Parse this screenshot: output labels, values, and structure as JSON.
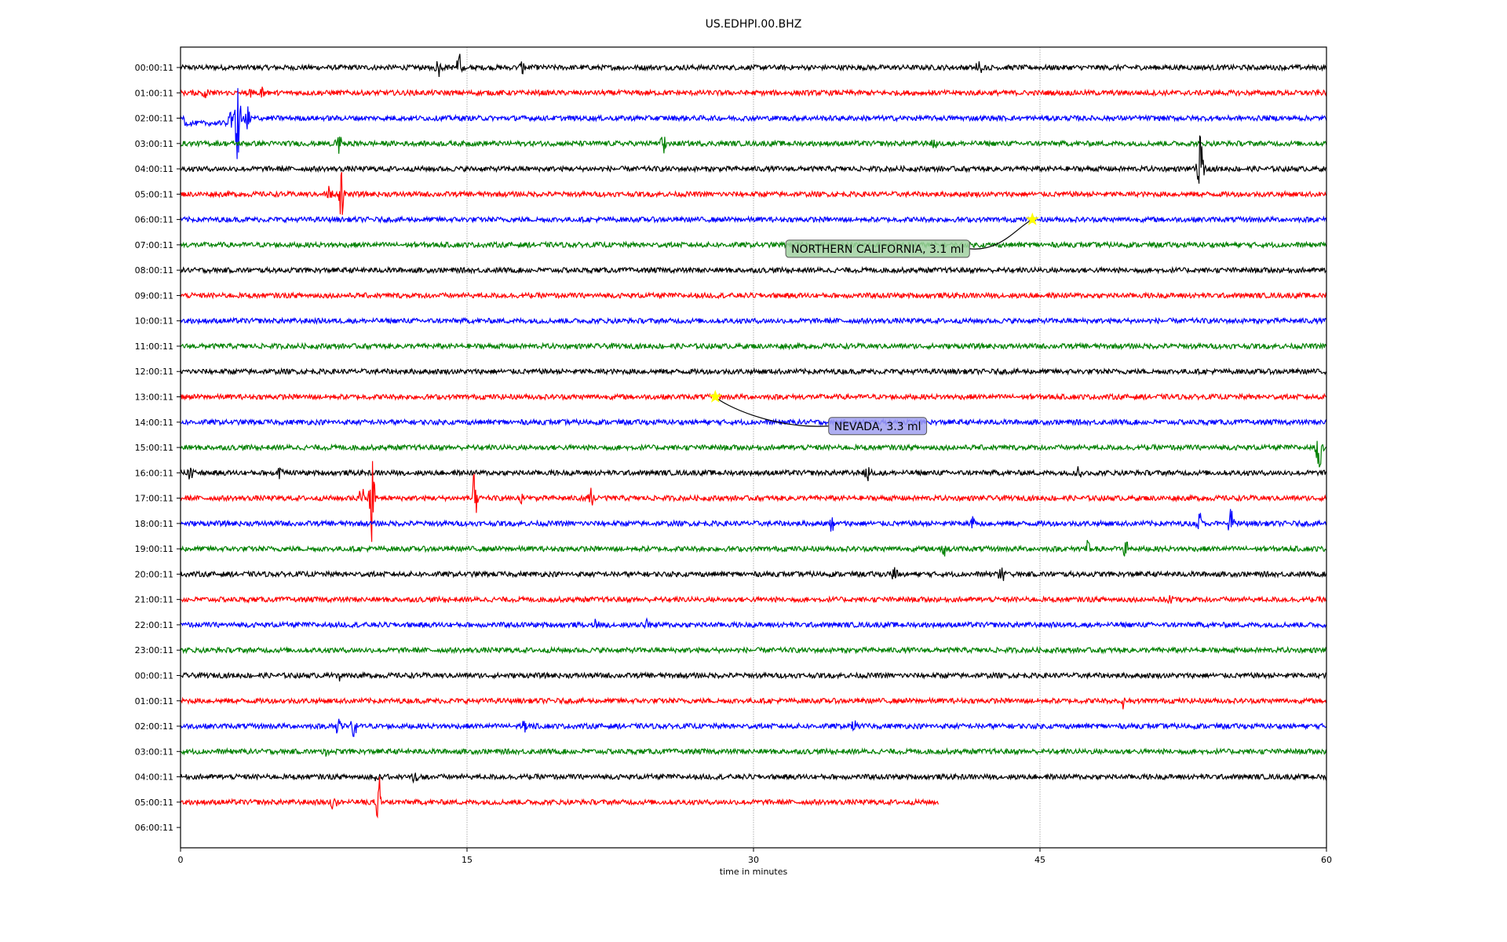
{
  "chart_data": {
    "type": "line",
    "title": "US.EDHPI.00.BHZ",
    "xlabel": "time in minutes",
    "ylabel": "",
    "xlim": [
      0,
      60
    ],
    "xticks": [
      "0",
      "15",
      "30",
      "45",
      "60"
    ],
    "xtick_values": [
      0,
      15,
      30,
      45,
      60
    ],
    "grid": "vertical dotted at 15-minute ticks",
    "colors": [
      "#000000",
      "#ff0000",
      "#0000ff",
      "#008000"
    ],
    "rows": [
      "00:00:11",
      "01:00:11",
      "02:00:11",
      "03:00:11",
      "04:00:11",
      "05:00:11",
      "06:00:11",
      "07:00:11",
      "08:00:11",
      "09:00:11",
      "10:00:11",
      "11:00:11",
      "12:00:11",
      "13:00:11",
      "14:00:11",
      "15:00:11",
      "16:00:11",
      "17:00:11",
      "18:00:11",
      "19:00:11",
      "20:00:11",
      "21:00:11",
      "22:00:11",
      "23:00:11",
      "00:00:11",
      "01:00:11",
      "02:00:11",
      "03:00:11",
      "04:00:11",
      "05:00:11",
      "06:00:11"
    ],
    "last_trace_end_minute": 39.7,
    "events_in_trace": [
      [
        0,
        13.5,
        0.4
      ],
      [
        0,
        14.6,
        0.5
      ],
      [
        0,
        17.9,
        0.3
      ],
      [
        0,
        41.8,
        0.3
      ],
      [
        1,
        3.8,
        0.45
      ],
      [
        1,
        4.3,
        0.3
      ],
      [
        1,
        1.3,
        0.2
      ],
      [
        2,
        2.6,
        0.5
      ],
      [
        2,
        3.0,
        2.0
      ],
      [
        2,
        3.5,
        0.5
      ],
      [
        3,
        8.3,
        0.5
      ],
      [
        3,
        25.3,
        0.4
      ],
      [
        3,
        39.5,
        0.2
      ],
      [
        4,
        53.4,
        1.4
      ],
      [
        5,
        8.4,
        1.1
      ],
      [
        5,
        7.8,
        0.4
      ],
      [
        15,
        59.6,
        1.0
      ],
      [
        16,
        0.5,
        0.3
      ],
      [
        16,
        5.2,
        0.3
      ],
      [
        16,
        36.0,
        0.4
      ],
      [
        16,
        47.0,
        0.4
      ],
      [
        17,
        10.0,
        1.8
      ],
      [
        17,
        9.5,
        0.6
      ],
      [
        17,
        15.4,
        1.0
      ],
      [
        17,
        21.5,
        0.4
      ],
      [
        17,
        17.8,
        0.3
      ],
      [
        18,
        55.0,
        0.6
      ],
      [
        18,
        53.4,
        0.5
      ],
      [
        18,
        34.1,
        0.3
      ],
      [
        18,
        41.5,
        0.3
      ],
      [
        19,
        40.0,
        0.3
      ],
      [
        19,
        47.5,
        0.3
      ],
      [
        19,
        49.5,
        0.4
      ],
      [
        20,
        37.4,
        0.4
      ],
      [
        20,
        43.0,
        0.4
      ],
      [
        21,
        51.8,
        0.3
      ],
      [
        22,
        21.8,
        0.3
      ],
      [
        22,
        24.4,
        0.3
      ],
      [
        24,
        8.3,
        0.2
      ],
      [
        25,
        49.3,
        0.3
      ],
      [
        26,
        8.3,
        0.5
      ],
      [
        26,
        9.1,
        0.5
      ],
      [
        26,
        18.0,
        0.4
      ],
      [
        26,
        35.3,
        0.3
      ],
      [
        27,
        7.6,
        0.2
      ],
      [
        28,
        10.3,
        0.3
      ],
      [
        28,
        12.3,
        0.3
      ],
      [
        29,
        10.4,
        1.2
      ],
      [
        29,
        8.0,
        0.3
      ]
    ],
    "annotations": [
      {
        "text": "NORTHERN CALIFORNIA, 3.1 ml",
        "row": 6,
        "minute": 44.6,
        "label_row": 7,
        "label_minute": 36.5,
        "box_color": "#a0d0a0"
      },
      {
        "text": "NEVADA, 3.3 ml",
        "row": 13,
        "minute": 28.0,
        "label_row": 14,
        "label_minute": 36.5,
        "box_color": "#a0a0f0"
      }
    ],
    "marker_color": "#ffff00"
  }
}
